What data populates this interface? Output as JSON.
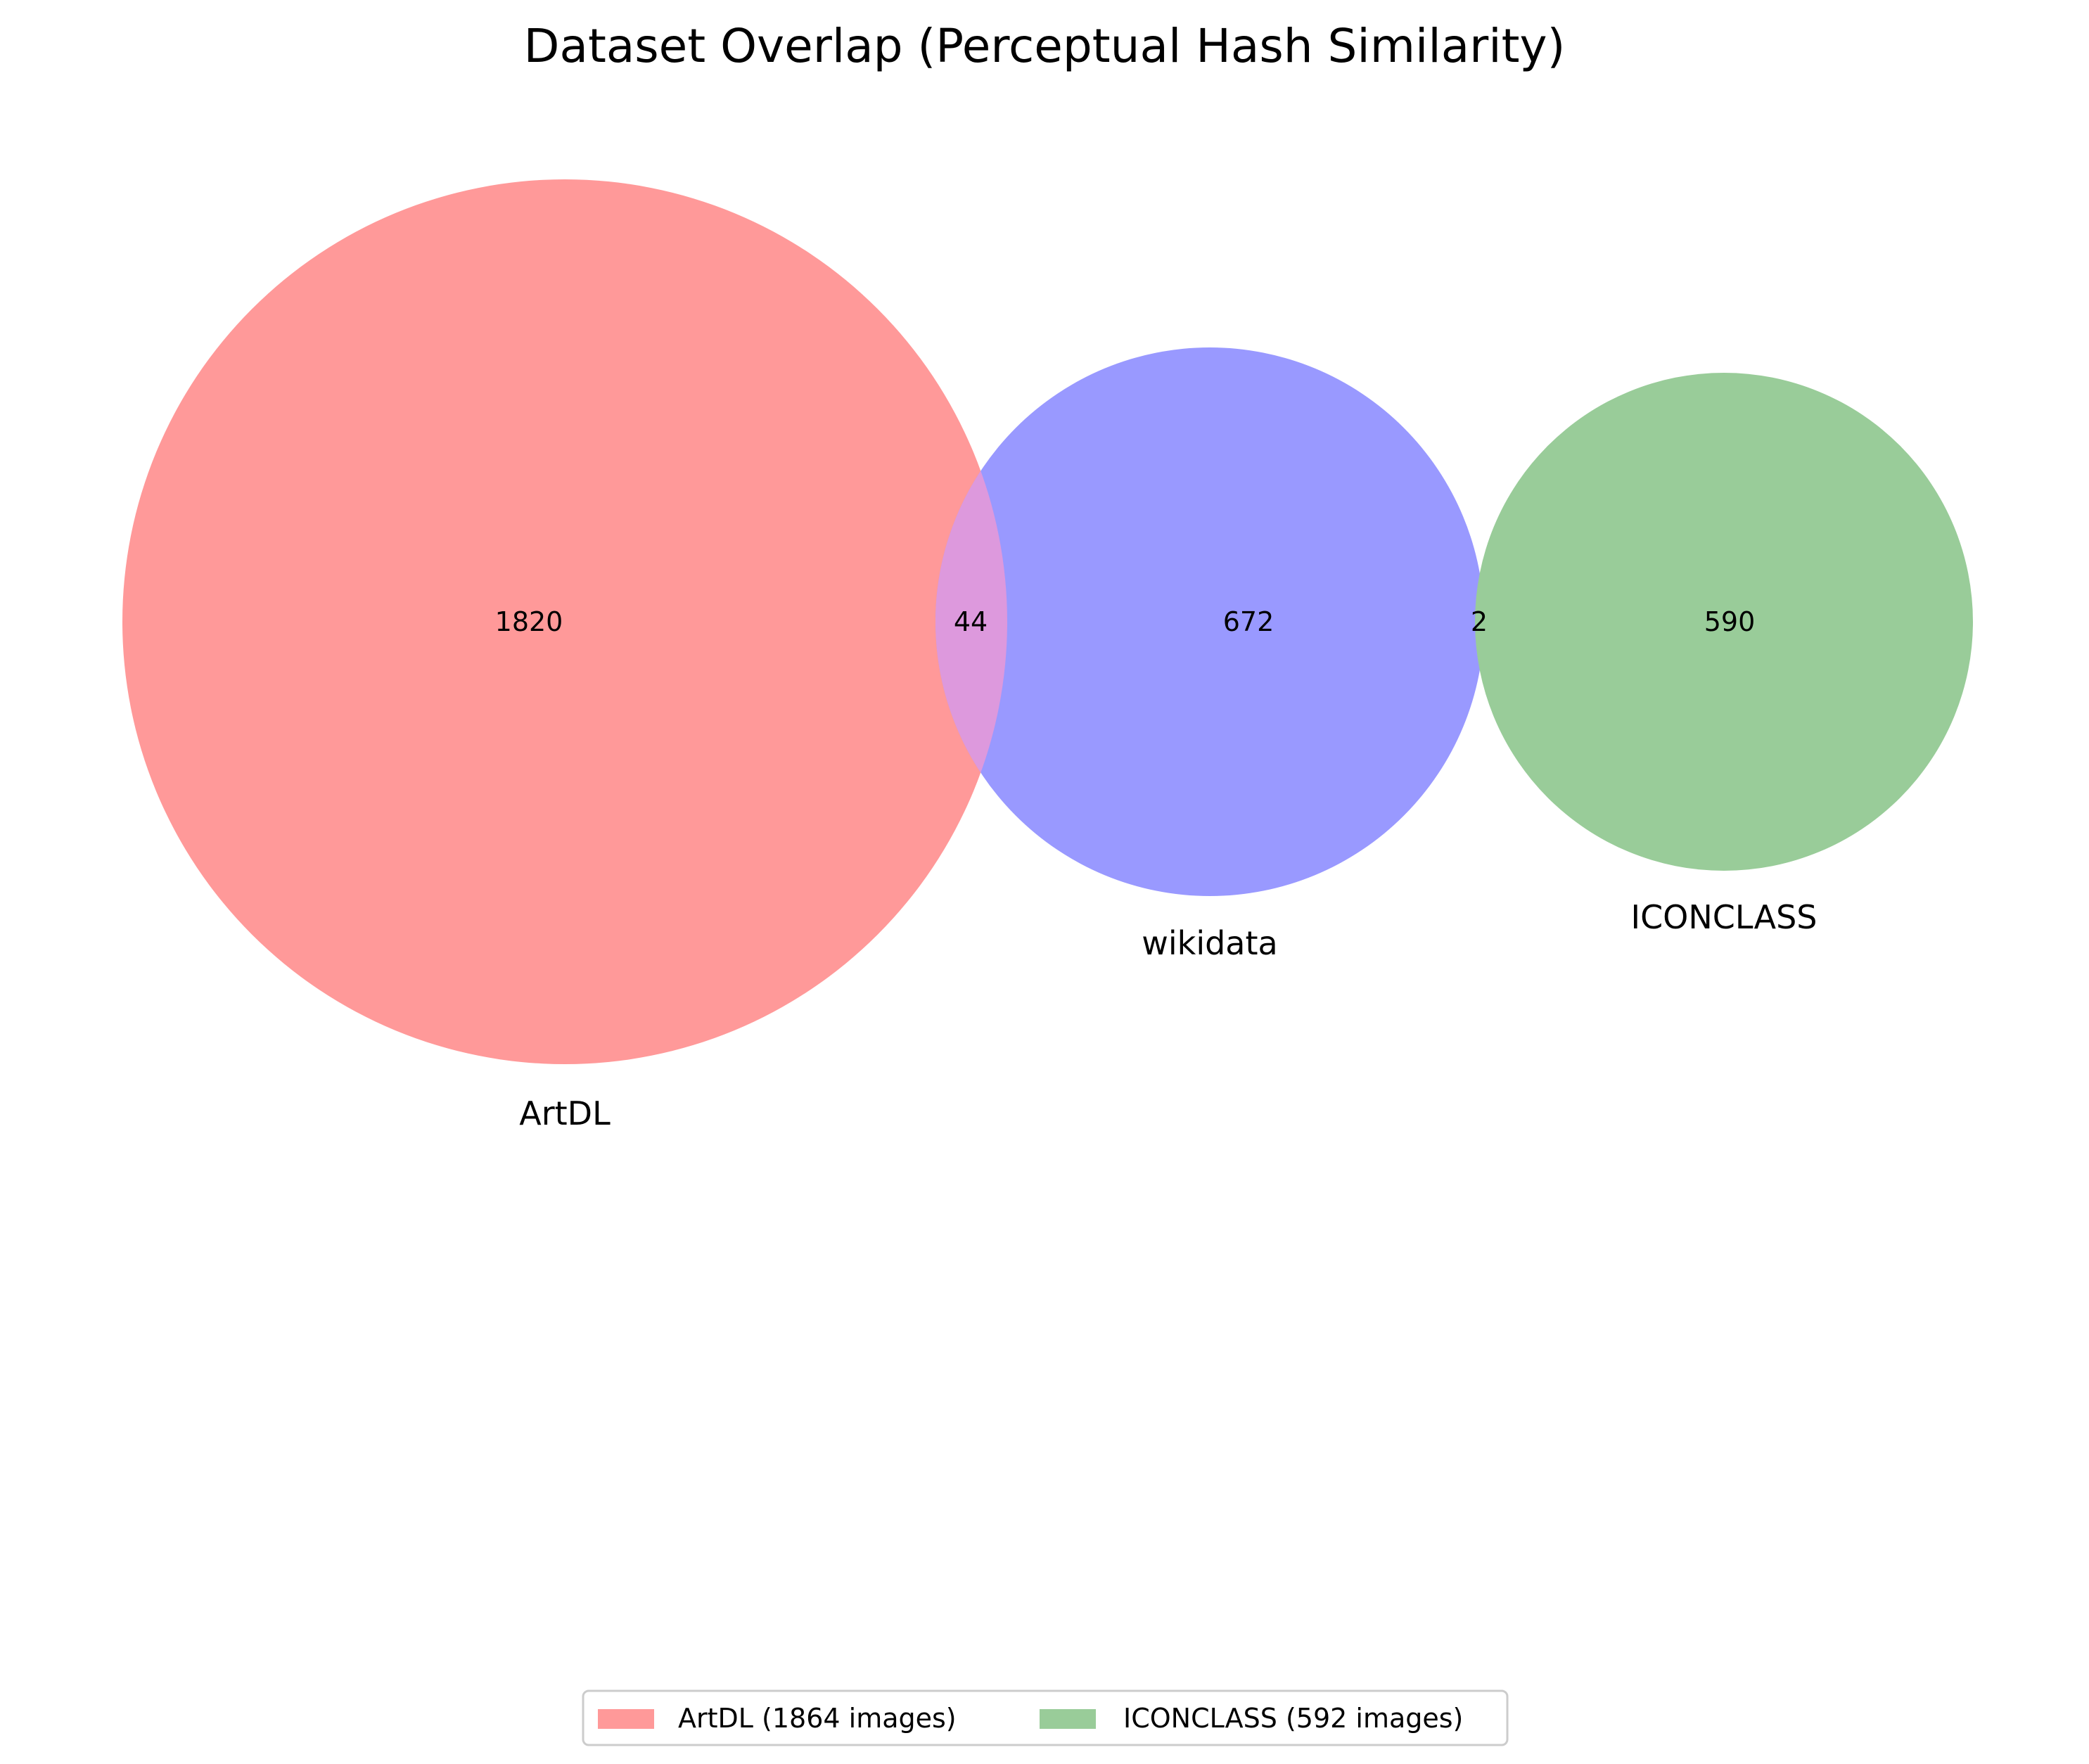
{
  "chart_data": {
    "type": "venn",
    "title": "Dataset Overlap (Perceptual Hash Similarity)",
    "sets": [
      {
        "name": "ArtDL",
        "color": "#ff9999"
      },
      {
        "name": "wikidata",
        "color": "#9999ff"
      },
      {
        "name": "ICONCLASS",
        "color": "#99cc99"
      }
    ],
    "regions": [
      {
        "sets": [
          "ArtDL"
        ],
        "count": "1820"
      },
      {
        "sets": [
          "ArtDL",
          "wikidata"
        ],
        "count": "44"
      },
      {
        "sets": [
          "wikidata"
        ],
        "count": "672"
      },
      {
        "sets": [
          "wikidata",
          "ICONCLASS"
        ],
        "count": "2"
      },
      {
        "sets": [
          "ICONCLASS"
        ],
        "count": "590"
      }
    ],
    "overlap_color": "#dd99dd",
    "legend": {
      "placement": "bottom-center",
      "entries": [
        {
          "label": "ArtDL (1864 images)",
          "color": "#ff9999"
        },
        {
          "label": "ICONCLASS (592 images)",
          "color": "#99cc99"
        }
      ]
    }
  }
}
